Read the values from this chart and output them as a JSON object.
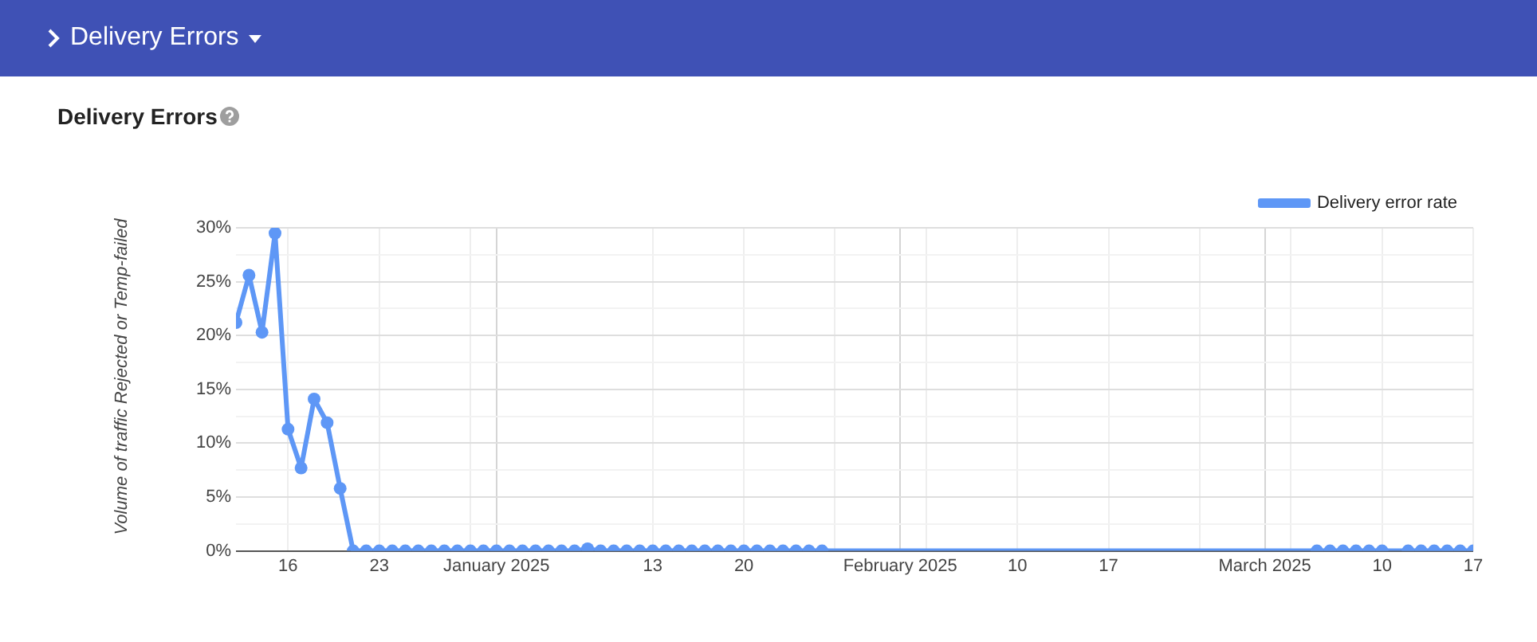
{
  "chart_data": {
    "type": "line",
    "title": "Delivery Errors",
    "ylabel": "Volume of traffic Rejected or Temp-failed",
    "annotations": [
      "Delivery Errors"
    ],
    "x": [
      "2024-12-12",
      "2024-12-13",
      "2024-12-14",
      "2024-12-15",
      "2024-12-16",
      "2024-12-17",
      "2024-12-18",
      "2024-12-19",
      "2024-12-20",
      "2024-12-21",
      "2024-12-22",
      "2024-12-23",
      "2024-12-24",
      "2024-12-25",
      "2024-12-26",
      "2024-12-27",
      "2024-12-28",
      "2024-12-29",
      "2024-12-30",
      "2024-12-31",
      "2025-01-01",
      "2025-01-02",
      "2025-01-03",
      "2025-01-04",
      "2025-01-05",
      "2025-01-06",
      "2025-01-07",
      "2025-01-08",
      "2025-01-09",
      "2025-01-10",
      "2025-01-11",
      "2025-01-12",
      "2025-01-13",
      "2025-01-14",
      "2025-01-15",
      "2025-01-16",
      "2025-01-17",
      "2025-01-18",
      "2025-01-19",
      "2025-01-20",
      "2025-01-21",
      "2025-01-22",
      "2025-01-23",
      "2025-01-24",
      "2025-01-25",
      "2025-01-26",
      "2025-03-05",
      "2025-03-06",
      "2025-03-07",
      "2025-03-08",
      "2025-03-09",
      "2025-03-10",
      "2025-03-12",
      "2025-03-13",
      "2025-03-14",
      "2025-03-15",
      "2025-03-16",
      "2025-03-17"
    ],
    "series": [
      {
        "name": "Delivery error rate",
        "color": "#5e97f6",
        "values": [
          21.2,
          25.6,
          20.3,
          29.5,
          11.3,
          7.7,
          14.1,
          11.9,
          5.8,
          0,
          0,
          0,
          0,
          0,
          0,
          0,
          0,
          0,
          0,
          0,
          0,
          0,
          0,
          0,
          0,
          0,
          0,
          0.2,
          0,
          0,
          0,
          0,
          0,
          0,
          0,
          0,
          0,
          0,
          0,
          0,
          0,
          0,
          0,
          0,
          0,
          0,
          0,
          0,
          0,
          0,
          0,
          0,
          0,
          0,
          0,
          0,
          0,
          0
        ]
      }
    ],
    "xlim": [
      "2024-12-12",
      "2025-03-17"
    ],
    "xticks": [
      {
        "value": "2024-12-16",
        "label": "16"
      },
      {
        "value": "2024-12-23",
        "label": "23"
      },
      {
        "value": "2024-12-30",
        "label": null
      },
      {
        "value": "2025-01-01",
        "label": "January 2025"
      },
      {
        "value": "2025-01-13",
        "label": "13"
      },
      {
        "value": "2025-01-20",
        "label": "20"
      },
      {
        "value": "2025-01-27",
        "label": null
      },
      {
        "value": "2025-02-01",
        "label": "February 2025"
      },
      {
        "value": "2025-02-03",
        "label": null
      },
      {
        "value": "2025-02-10",
        "label": "10"
      },
      {
        "value": "2025-02-17",
        "label": "17"
      },
      {
        "value": "2025-02-24",
        "label": null
      },
      {
        "value": "2025-03-01",
        "label": "March 2025"
      },
      {
        "value": "2025-03-03",
        "label": null
      },
      {
        "value": "2025-03-10",
        "label": "10"
      },
      {
        "value": "2025-03-17",
        "label": "17"
      }
    ],
    "ylim": [
      0,
      30
    ],
    "yticks": [
      {
        "value": 0,
        "label": "0%"
      },
      {
        "value": 2.5,
        "label": null
      },
      {
        "value": 5,
        "label": "5%"
      },
      {
        "value": 7.5,
        "label": null
      },
      {
        "value": 10,
        "label": "10%"
      },
      {
        "value": 12.5,
        "label": null
      },
      {
        "value": 15,
        "label": "15%"
      },
      {
        "value": 17.5,
        "label": null
      },
      {
        "value": 20,
        "label": "20%"
      },
      {
        "value": 22.5,
        "label": null
      },
      {
        "value": 25,
        "label": "25%"
      },
      {
        "value": 27.5,
        "label": null
      },
      {
        "value": 30,
        "label": "30%"
      }
    ],
    "grid": true,
    "legend": "top right",
    "marker": "circle",
    "line_style": "solid"
  }
}
